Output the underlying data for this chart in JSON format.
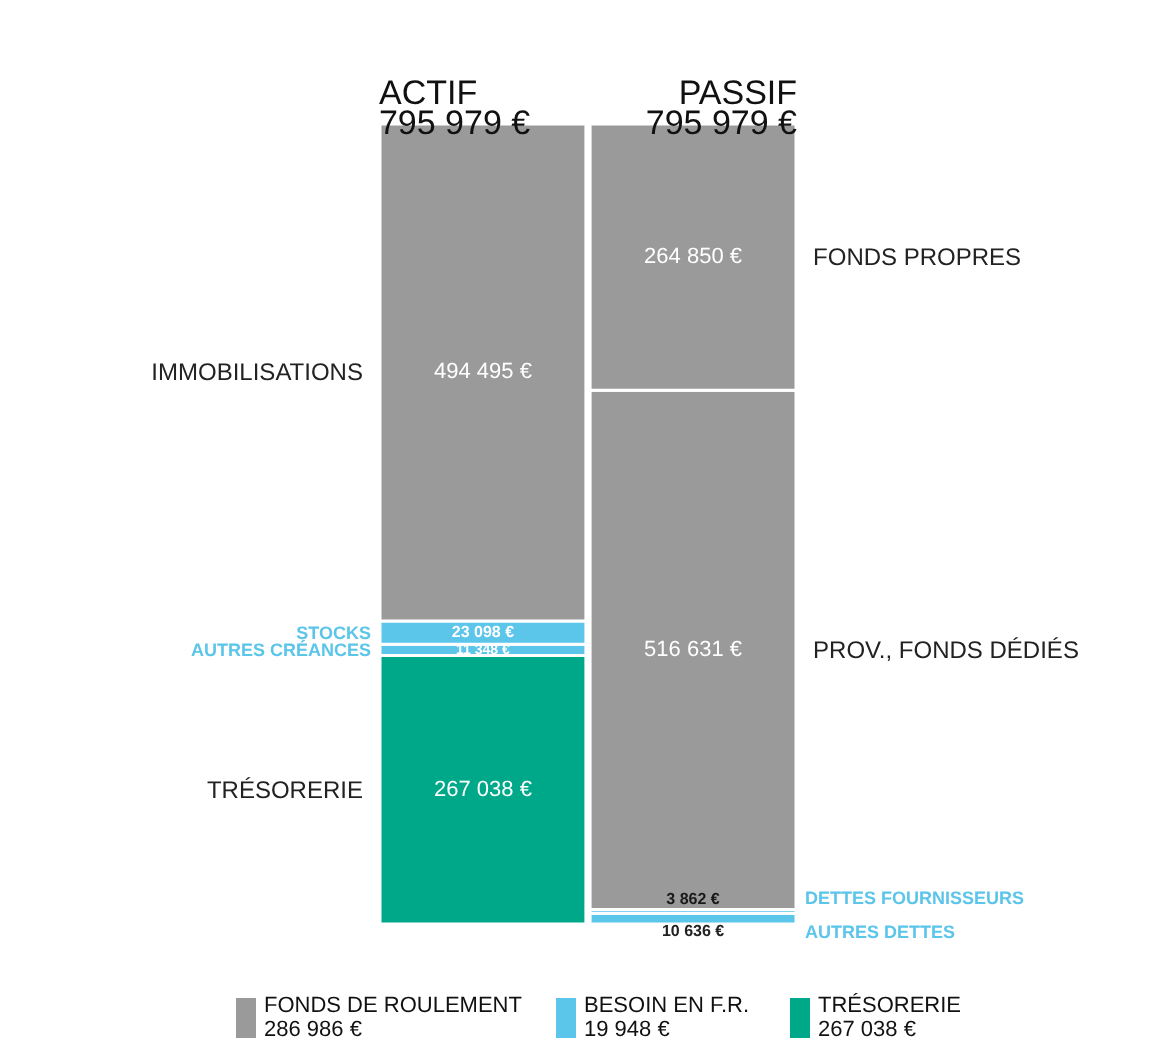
{
  "chart_data": {
    "type": "bar",
    "stacked": true,
    "categories": [
      "ACTIF",
      "PASSIF"
    ],
    "totals": [
      "795 979 €",
      "795 979 €"
    ],
    "series": [
      {
        "name": "TRÉSORERIE",
        "color": "#00a88a",
        "values": [
          267038,
          null
        ],
        "value_labels": [
          "267 038 €",
          null
        ]
      },
      {
        "name": "AUTRES CRÉANCES",
        "color": "#5bc5ea",
        "values": [
          11348,
          null
        ],
        "value_labels": [
          "11 348 €",
          null
        ]
      },
      {
        "name": "STOCKS",
        "color": "#5bc5ea",
        "values": [
          23098,
          null
        ],
        "value_labels": [
          "23 098 €",
          null
        ]
      },
      {
        "name": "IMMOBILISATIONS",
        "color": "#9a9a9a",
        "values": [
          494495,
          null
        ],
        "value_labels": [
          "494 495 €",
          null
        ]
      },
      {
        "name": "AUTRES DETTES",
        "color": "#5bc5ea",
        "values": [
          null,
          10636
        ],
        "value_labels": [
          null,
          "10 636 €"
        ]
      },
      {
        "name": "DETTES FOURNISSEURS",
        "color": "#5bc5ea",
        "values": [
          null,
          3862
        ],
        "value_labels": [
          null,
          "3 862 €"
        ]
      },
      {
        "name": "PROV., FONDS DÉDIÉS",
        "color": "#9a9a9a",
        "values": [
          null,
          516631
        ],
        "value_labels": [
          null,
          "516 631 €"
        ]
      },
      {
        "name": "FONDS PROPRES",
        "color": "#9a9a9a",
        "values": [
          null,
          264850
        ],
        "value_labels": [
          null,
          "264 850 €"
        ]
      }
    ],
    "annotations": [
      "FONDS DE ROULEMENT\n286 986 €",
      "BESOIN EN F.R.\n19 948 €",
      "TRÉSORERIE\n267 038 €"
    ]
  }
}
